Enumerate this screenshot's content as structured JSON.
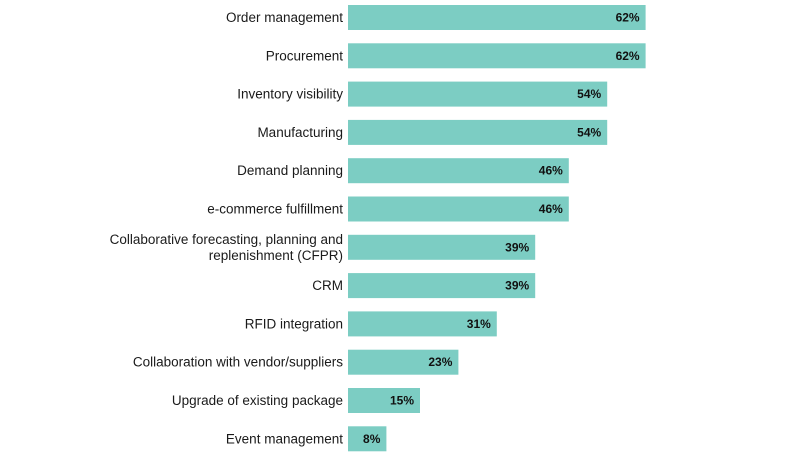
{
  "chart_data": {
    "type": "bar",
    "orientation": "horizontal",
    "categories": [
      [
        "Order management"
      ],
      [
        "Procurement"
      ],
      [
        "Inventory visibility"
      ],
      [
        "Manufacturing"
      ],
      [
        "Demand planning"
      ],
      [
        "e-commerce fulfillment"
      ],
      [
        "Collaborative forecasting, planning and",
        "replenishment (CFPR)"
      ],
      [
        "CRM"
      ],
      [
        "RFID integration"
      ],
      [
        "Collaboration with vendor/suppliers"
      ],
      [
        "Upgrade of existing package"
      ],
      [
        "Event management"
      ]
    ],
    "values": [
      62,
      62,
      54,
      54,
      46,
      46,
      39,
      39,
      31,
      23,
      15,
      8
    ],
    "value_labels": [
      "62%",
      "62%",
      "54%",
      "54%",
      "46%",
      "46%",
      "39%",
      "39%",
      "31%",
      "23%",
      "15%",
      "8%"
    ],
    "unit": "%",
    "xlim": [
      0,
      100
    ],
    "bar_color": "#7ccdc3",
    "grid": false,
    "legend": "none"
  }
}
